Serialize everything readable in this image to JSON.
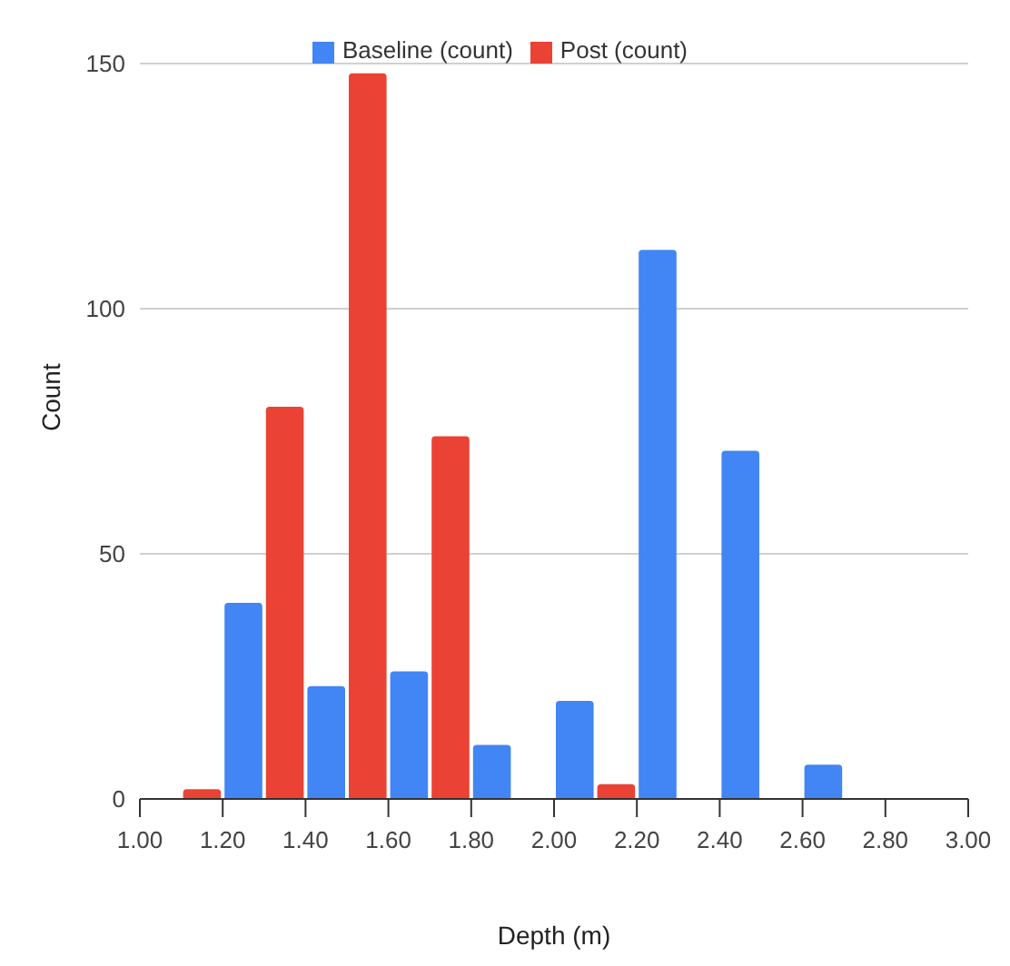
{
  "chart_data": {
    "type": "bar",
    "xlabel": "Depth (m)",
    "ylabel": "Count",
    "xlim": [
      1,
      3
    ],
    "xticks": [
      {
        "value": 1,
        "label": "1.00"
      },
      {
        "value": 1.2,
        "label": "1.20"
      },
      {
        "value": 1.4,
        "label": "1.40"
      },
      {
        "value": 1.6,
        "label": "1.60"
      },
      {
        "value": 1.8,
        "label": "1.80"
      },
      {
        "value": 2,
        "label": "2.00"
      },
      {
        "value": 2.2,
        "label": "2.20"
      },
      {
        "value": 2.4,
        "label": "2.40"
      },
      {
        "value": 2.6,
        "label": "2.60"
      },
      {
        "value": 2.8,
        "label": "2.80"
      },
      {
        "value": 3,
        "label": "3.00"
      }
    ],
    "ylim": [
      0,
      150
    ],
    "yticks": [
      0,
      50,
      100,
      150
    ],
    "series": [
      {
        "name": "Baseline (count)",
        "color": "#4285f4",
        "x": [
          1.25,
          1.45,
          1.65,
          1.85,
          2.05,
          2.25,
          2.45,
          2.65
        ],
        "values": [
          40,
          23,
          26,
          11,
          20,
          112,
          71,
          7
        ]
      },
      {
        "name": "Post (count)",
        "color": "#ea4335",
        "x": [
          1.15,
          1.35,
          1.55,
          1.75,
          2.15
        ],
        "values": [
          2,
          80,
          148,
          74,
          3
        ]
      }
    ],
    "grid": "y",
    "legend": "top"
  }
}
